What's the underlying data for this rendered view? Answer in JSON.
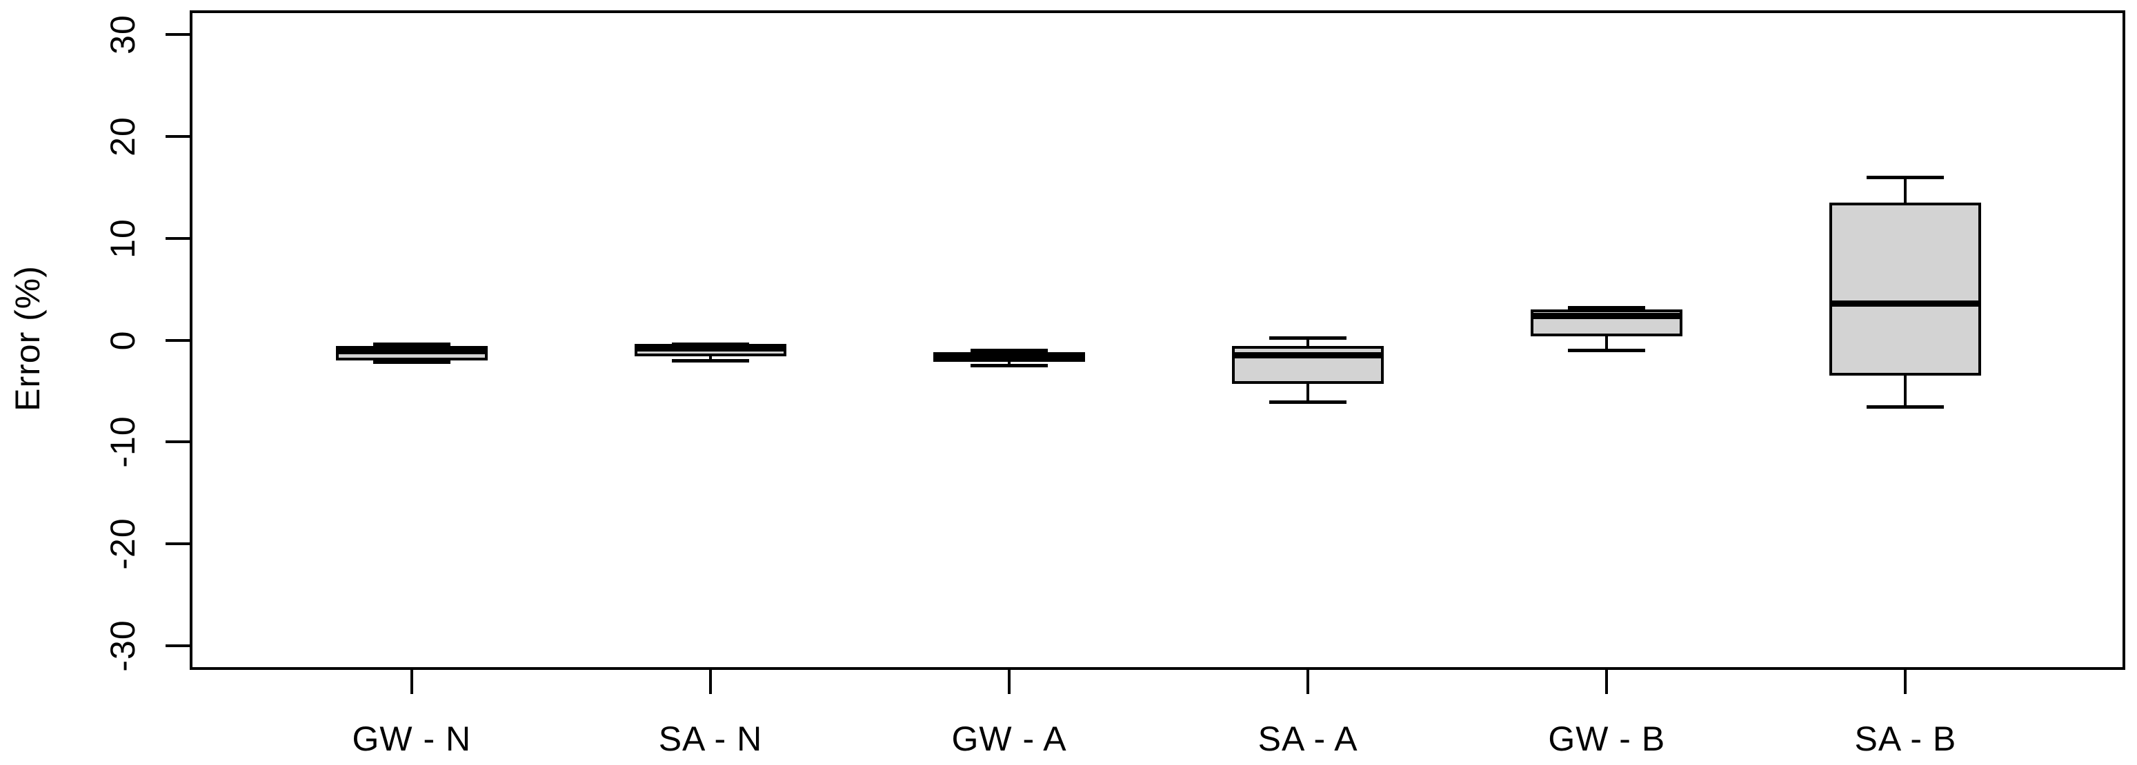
{
  "chart_data": {
    "type": "boxplot",
    "title": "",
    "xlabel": "",
    "ylabel": "Error (%)",
    "categories": [
      "GW - N",
      "SA - N",
      "GW - A",
      "SA - A",
      "GW - B",
      "SA - B"
    ],
    "y_axis": {
      "min": -32.4,
      "max": 32.4,
      "ticks": [
        30,
        20,
        10,
        0,
        -10,
        -20,
        -30
      ],
      "tick_labels": [
        "30",
        "20",
        "10",
        "0",
        "-10",
        "-20",
        "-30"
      ],
      "grid": false
    },
    "legend": null,
    "boxes": [
      {
        "category": "GW - N",
        "whisker_low": -2.2,
        "q1": -2.0,
        "median": -1.1,
        "q3": -0.6,
        "whisker_high": -0.4
      },
      {
        "category": "SA - N",
        "whisker_low": -2.0,
        "q1": -1.6,
        "median": -0.8,
        "q3": -0.4,
        "whisker_high": -0.4
      },
      {
        "category": "GW - A",
        "whisker_low": -2.5,
        "q1": -2.1,
        "median": -1.6,
        "q3": -1.2,
        "whisker_high": -1.0
      },
      {
        "category": "SA - A",
        "whisker_low": -6.1,
        "q1": -4.3,
        "median": -1.5,
        "q3": -0.6,
        "whisker_high": 0.2
      },
      {
        "category": "GW - B",
        "whisker_low": -1.0,
        "q1": 0.4,
        "median": 2.4,
        "q3": 3.0,
        "whisker_high": 3.2
      },
      {
        "category": "SA - B",
        "whisker_low": -6.6,
        "q1": -3.5,
        "median": 3.6,
        "q3": 13.5,
        "whisker_high": 16.0
      }
    ],
    "colors": {
      "box_fill": "#d3d3d3",
      "line": "#000000",
      "background": "#ffffff"
    }
  }
}
